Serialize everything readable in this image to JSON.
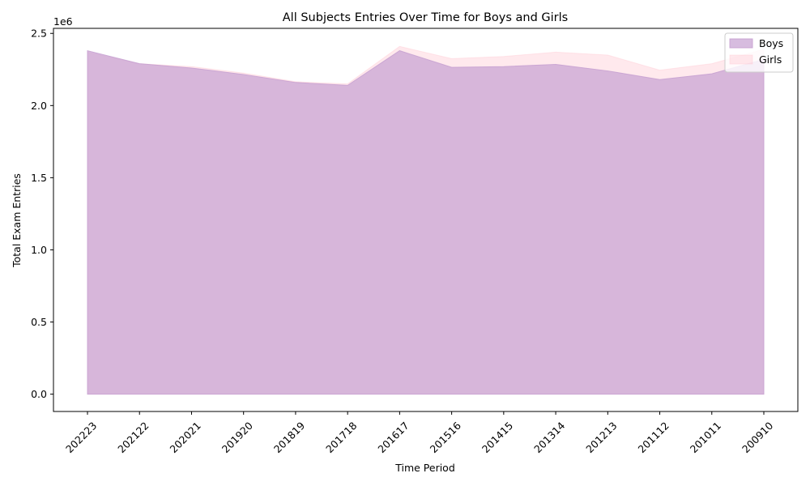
{
  "chart_data": {
    "type": "area",
    "title": "All Subjects Entries Over Time for Boys and Girls",
    "xlabel": "Time Period",
    "ylabel": "Total Exam Entries",
    "y_offset_label": "1e6",
    "categories": [
      "202223",
      "202122",
      "202021",
      "201920",
      "201819",
      "201718",
      "201617",
      "201516",
      "201415",
      "201314",
      "201213",
      "201112",
      "201011",
      "200910"
    ],
    "series": [
      {
        "name": "Boys",
        "color": "#c8a2d2",
        "values": [
          2380000,
          2290000,
          2260000,
          2215000,
          2160000,
          2140000,
          2380000,
          2265000,
          2270000,
          2285000,
          2240000,
          2180000,
          2220000,
          2320000
        ]
      },
      {
        "name": "Girls",
        "color": "#ffc0cb",
        "values": [
          2370000,
          2290000,
          2270000,
          2225000,
          2165000,
          2150000,
          2410000,
          2325000,
          2340000,
          2370000,
          2350000,
          2245000,
          2290000,
          2390000
        ]
      }
    ],
    "yticks": [
      "0.0",
      "0.5",
      "1.0",
      "1.5",
      "2.0",
      "2.5"
    ],
    "ytick_values": [
      0,
      500000,
      1000000,
      1500000,
      2000000,
      2500000
    ],
    "ylim": [
      -120000,
      2535000
    ],
    "grid": false,
    "legend_position": "top-right"
  }
}
